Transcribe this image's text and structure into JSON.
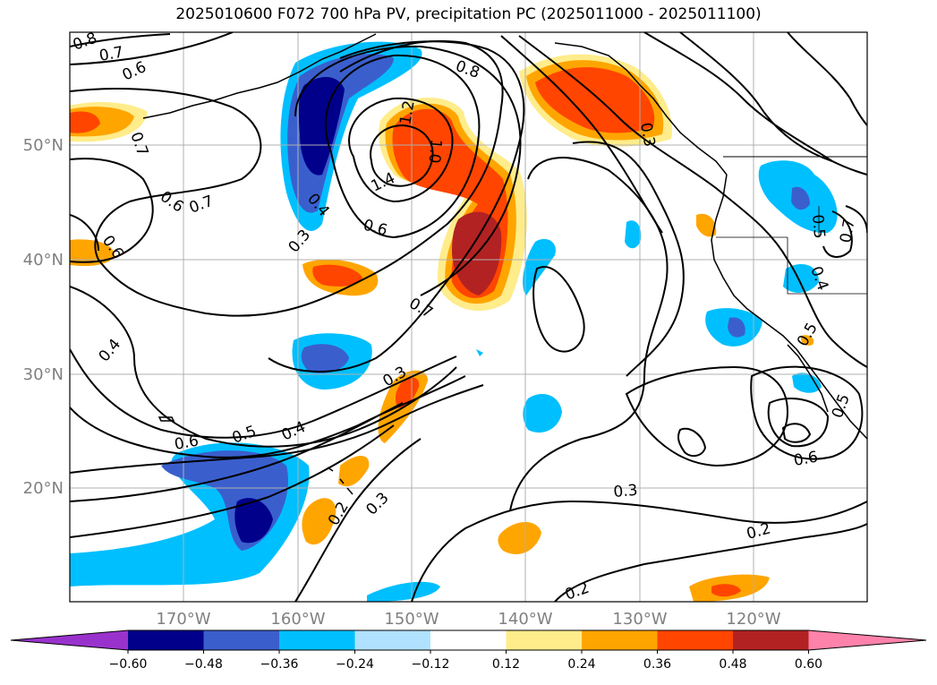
{
  "title": "2025010600 F072 700 hPa PV, precipitation PC (2025011000 - 2025011100)",
  "lat_labels": [
    "50°N",
    "40°N",
    "30°N",
    "20°N"
  ],
  "lon_labels": [
    "170°W",
    "160°W",
    "150°W",
    "140°W",
    "130°W",
    "120°W"
  ],
  "contour_labels": [
    "0.8",
    "0.7",
    "0.6",
    "0.7",
    "0.6",
    "0.7",
    "0.6",
    "0.4",
    "0.4",
    "0.3",
    "0.6",
    "1.4",
    "1.2",
    "1.0",
    "0.8",
    "0.7",
    "0.3",
    "0.5",
    "0.6",
    "0.4",
    "0.2",
    "0.3",
    "0.3",
    "0.2",
    "0.2",
    "0.3",
    "0.6",
    "0.5",
    "0.5",
    "0.4",
    "0.5",
    "0.7"
  ],
  "colorbar": {
    "tick_labels": [
      "−0.60",
      "−0.48",
      "−0.36",
      "−0.24",
      "−0.12",
      "0.12",
      "0.24",
      "0.36",
      "0.48",
      "0.60"
    ],
    "colors": [
      "#9932cc",
      "#00008b",
      "#3a5fcd",
      "#00bfff",
      "#b0e2ff",
      "#ffffff",
      "#ffec8b",
      "#ffa500",
      "#ff4500",
      "#b22222",
      "#ff82ab"
    ]
  },
  "colors": {
    "frame": "#000000",
    "grid": "#b0b0b0",
    "axis_label": "#808080",
    "contour": "#000000"
  }
}
